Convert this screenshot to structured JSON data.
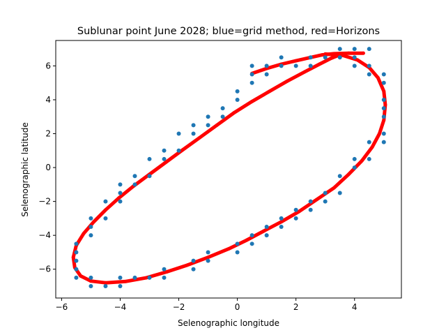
{
  "chart_data": {
    "type": "scatter",
    "title": "Sublunar point June 2028; blue=grid method, red=Horizons",
    "xlabel": "Selenographic longitude",
    "ylabel": "Selenographic latitude",
    "xlim": [
      -6.2,
      5.6
    ],
    "ylim": [
      -7.7,
      7.5
    ],
    "xticks": [
      -6,
      -4,
      -2,
      0,
      2,
      4
    ],
    "yticks": [
      -6,
      -4,
      -2,
      0,
      2,
      4,
      6
    ],
    "grid": false,
    "colors": {
      "grid_method": "#1f77b4",
      "horizons": "#ff0000"
    },
    "series": [
      {
        "name": "grid method",
        "marker": "dot",
        "points": [
          [
            0.5,
            5.5
          ],
          [
            0.5,
            6.0
          ],
          [
            0.5,
            5.0
          ],
          [
            1.0,
            6.0
          ],
          [
            1.0,
            5.5
          ],
          [
            1.5,
            6.5
          ],
          [
            1.5,
            6.0
          ],
          [
            2.0,
            6.0
          ],
          [
            2.5,
            6.5
          ],
          [
            2.5,
            6.0
          ],
          [
            3.0,
            6.5
          ],
          [
            3.5,
            7.0
          ],
          [
            3.5,
            6.5
          ],
          [
            4.0,
            7.0
          ],
          [
            4.0,
            6.5
          ],
          [
            4.0,
            6.0
          ],
          [
            4.5,
            7.0
          ],
          [
            4.5,
            6.0
          ],
          [
            4.5,
            5.5
          ],
          [
            5.0,
            5.5
          ],
          [
            5.0,
            5.0
          ],
          [
            5.0,
            4.0
          ],
          [
            5.0,
            3.5
          ],
          [
            5.0,
            3.0
          ],
          [
            5.0,
            2.0
          ],
          [
            5.0,
            1.5
          ],
          [
            4.5,
            1.5
          ],
          [
            4.5,
            0.5
          ],
          [
            4.0,
            0.5
          ],
          [
            4.0,
            0.0
          ],
          [
            3.5,
            -0.5
          ],
          [
            3.5,
            -1.5
          ],
          [
            3.0,
            -1.5
          ],
          [
            3.0,
            -2.0
          ],
          [
            2.5,
            -2.0
          ],
          [
            2.5,
            -2.5
          ],
          [
            2.0,
            -2.5
          ],
          [
            2.0,
            -3.0
          ],
          [
            1.5,
            -3.0
          ],
          [
            1.5,
            -3.5
          ],
          [
            1.0,
            -3.5
          ],
          [
            1.0,
            -4.0
          ],
          [
            0.5,
            -4.0
          ],
          [
            0.5,
            -4.5
          ],
          [
            0.0,
            -4.5
          ],
          [
            0.0,
            -5.0
          ],
          [
            -1.0,
            -5.0
          ],
          [
            -1.0,
            -5.5
          ],
          [
            -1.5,
            -5.5
          ],
          [
            -1.5,
            -6.0
          ],
          [
            -2.5,
            -6.0
          ],
          [
            -2.5,
            -6.5
          ],
          [
            -3.0,
            -6.5
          ],
          [
            -3.5,
            -6.5
          ],
          [
            -4.0,
            -6.5
          ],
          [
            -4.0,
            -7.0
          ],
          [
            -4.5,
            -7.0
          ],
          [
            -5.0,
            -7.0
          ],
          [
            -5.0,
            -6.5
          ],
          [
            -5.5,
            -6.5
          ],
          [
            -5.5,
            -6.0
          ],
          [
            -5.5,
            -5.5
          ],
          [
            -5.5,
            -5.0
          ],
          [
            -5.5,
            -4.5
          ],
          [
            -5.0,
            -4.0
          ],
          [
            -5.0,
            -3.5
          ],
          [
            -5.0,
            -3.0
          ],
          [
            -4.5,
            -3.0
          ],
          [
            -4.5,
            -2.0
          ],
          [
            -4.0,
            -2.0
          ],
          [
            -4.0,
            -1.5
          ],
          [
            -4.0,
            -1.0
          ],
          [
            -3.5,
            -1.0
          ],
          [
            -3.5,
            -0.5
          ],
          [
            -3.0,
            -0.5
          ],
          [
            -3.0,
            0.5
          ],
          [
            -2.5,
            0.5
          ],
          [
            -2.5,
            1.0
          ],
          [
            -2.0,
            1.0
          ],
          [
            -2.0,
            2.0
          ],
          [
            -1.5,
            2.0
          ],
          [
            -1.5,
            2.5
          ],
          [
            -1.0,
            2.5
          ],
          [
            -1.0,
            3.0
          ],
          [
            -0.5,
            3.0
          ],
          [
            -0.5,
            3.5
          ],
          [
            0.0,
            4.0
          ],
          [
            0.0,
            4.5
          ]
        ]
      },
      {
        "name": "Horizons",
        "marker": "curve",
        "points": [
          [
            4.3,
            6.75
          ],
          [
            3.8,
            6.75
          ],
          [
            3.3,
            6.72
          ],
          [
            2.9,
            6.65
          ],
          [
            2.5,
            6.5
          ],
          [
            2.0,
            6.3
          ],
          [
            1.5,
            6.1
          ],
          [
            1.0,
            5.85
          ],
          [
            0.5,
            5.55
          ],
          [
            3.0,
            6.7
          ],
          [
            3.6,
            6.62
          ],
          [
            4.1,
            6.35
          ],
          [
            4.5,
            5.9
          ],
          [
            4.8,
            5.3
          ],
          [
            5.0,
            4.5
          ],
          [
            5.05,
            3.7
          ],
          [
            5.0,
            2.8
          ],
          [
            4.85,
            2.0
          ],
          [
            4.6,
            1.2
          ],
          [
            4.25,
            0.4
          ],
          [
            3.8,
            -0.4
          ],
          [
            3.3,
            -1.2
          ],
          [
            2.7,
            -1.9
          ],
          [
            2.1,
            -2.6
          ],
          [
            1.5,
            -3.2
          ],
          [
            0.9,
            -3.75
          ],
          [
            0.3,
            -4.3
          ],
          [
            -0.3,
            -4.8
          ],
          [
            -1.0,
            -5.3
          ],
          [
            -1.7,
            -5.75
          ],
          [
            -2.4,
            -6.15
          ],
          [
            -3.1,
            -6.5
          ],
          [
            -3.8,
            -6.72
          ],
          [
            -4.5,
            -6.8
          ],
          [
            -5.0,
            -6.7
          ],
          [
            -5.35,
            -6.4
          ],
          [
            -5.55,
            -5.9
          ],
          [
            -5.6,
            -5.3
          ],
          [
            -5.5,
            -4.6
          ],
          [
            -5.25,
            -3.9
          ],
          [
            -4.9,
            -3.2
          ],
          [
            -4.5,
            -2.5
          ],
          [
            -4.05,
            -1.8
          ],
          [
            -3.55,
            -1.1
          ],
          [
            -3.0,
            -0.4
          ],
          [
            -2.45,
            0.3
          ],
          [
            -1.9,
            1.0
          ],
          [
            -1.3,
            1.75
          ],
          [
            -0.7,
            2.5
          ],
          [
            -0.1,
            3.25
          ],
          [
            0.5,
            3.9
          ],
          [
            1.1,
            4.5
          ],
          [
            1.7,
            5.1
          ],
          [
            2.3,
            5.65
          ],
          [
            2.8,
            6.1
          ],
          [
            3.2,
            6.45
          ],
          [
            3.5,
            6.65
          ]
        ]
      }
    ]
  }
}
